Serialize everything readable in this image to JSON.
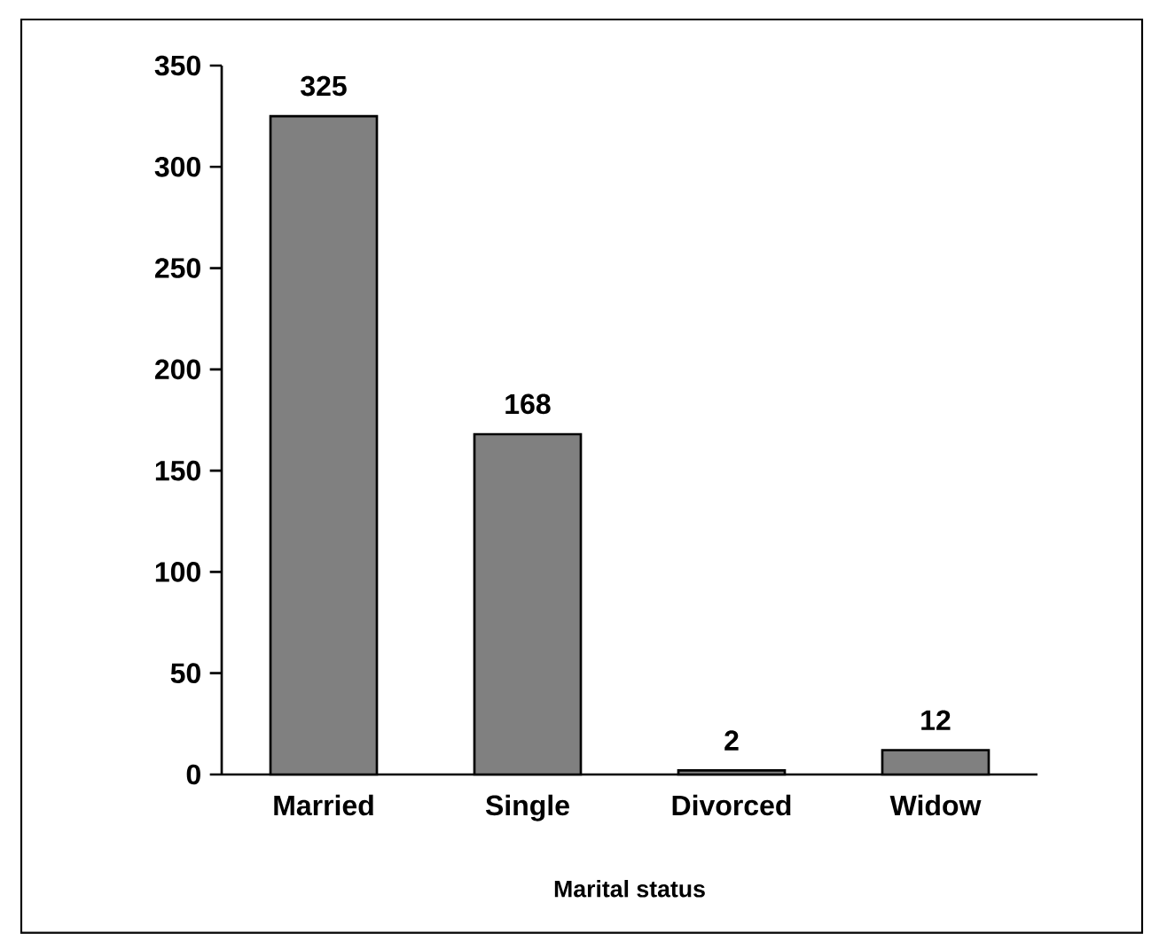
{
  "chart_data": {
    "type": "bar",
    "xlabel": "Marital status",
    "categories": [
      "Married",
      "Single",
      "Divorced",
      "Widow"
    ],
    "values": [
      325,
      168,
      2,
      12
    ],
    "color": "#808080",
    "ylim": [
      0,
      350
    ],
    "yticks": [
      0,
      50,
      100,
      150,
      200,
      250,
      300,
      350
    ],
    "data_labels": true,
    "grid": false
  }
}
